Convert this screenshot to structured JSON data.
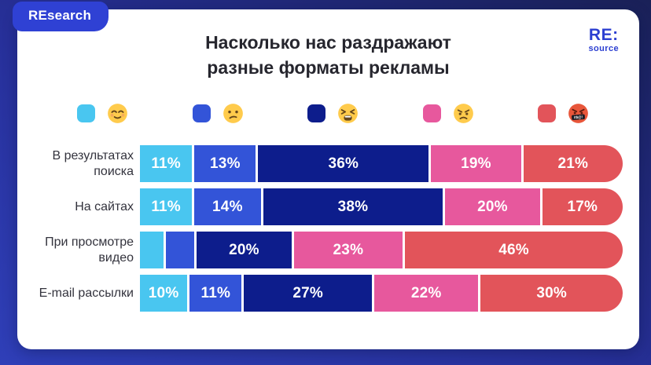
{
  "badge": {
    "label": "REsearch"
  },
  "logo": {
    "top": "RE:",
    "bottom": "source"
  },
  "title": {
    "line1": "Насколько нас раздражают",
    "line2": "разные форматы рекламы"
  },
  "colors": {
    "background_left": "#2F3FB8",
    "background_right": "#1A2158",
    "badge": "#2F41D4",
    "logo": "#2C3FD1",
    "title_text": "#26262E",
    "category_text": "#33333D",
    "value_text": "#FFFFFF"
  },
  "legend": [
    {
      "icon": "relieved-emoji",
      "color": "#49C6F0"
    },
    {
      "icon": "confused-emoji",
      "color": "#3354D8"
    },
    {
      "icon": "tired-emoji",
      "color": "#0D1D8C"
    },
    {
      "icon": "angry-emoji",
      "color": "#E7589D"
    },
    {
      "icon": "cursing-emoji",
      "color": "#E2545A"
    }
  ],
  "chart_data": {
    "type": "bar",
    "stacked": true,
    "orientation": "horizontal",
    "title": "Насколько нас раздражают разные форматы рекламы",
    "categories": [
      "В результатах поиска",
      "На сайтах",
      "При просмотре видео",
      "E-mail рассылки"
    ],
    "series": [
      {
        "name": "relieved-emoji",
        "color": "#49C6F0",
        "values": [
          11,
          11,
          5,
          10
        ]
      },
      {
        "name": "confused-emoji",
        "color": "#3354D8",
        "values": [
          13,
          14,
          6,
          11
        ]
      },
      {
        "name": "tired-emoji",
        "color": "#0D1D8C",
        "values": [
          36,
          38,
          20,
          27
        ]
      },
      {
        "name": "angry-emoji",
        "color": "#E7589D",
        "values": [
          19,
          20,
          23,
          22
        ]
      },
      {
        "name": "cursing-emoji",
        "color": "#E2545A",
        "values": [
          21,
          17,
          46,
          30
        ]
      }
    ],
    "value_suffix": "%",
    "xlim": [
      0,
      100
    ],
    "show_label_min_value": 10,
    "legend_position": "top",
    "grid": false
  }
}
